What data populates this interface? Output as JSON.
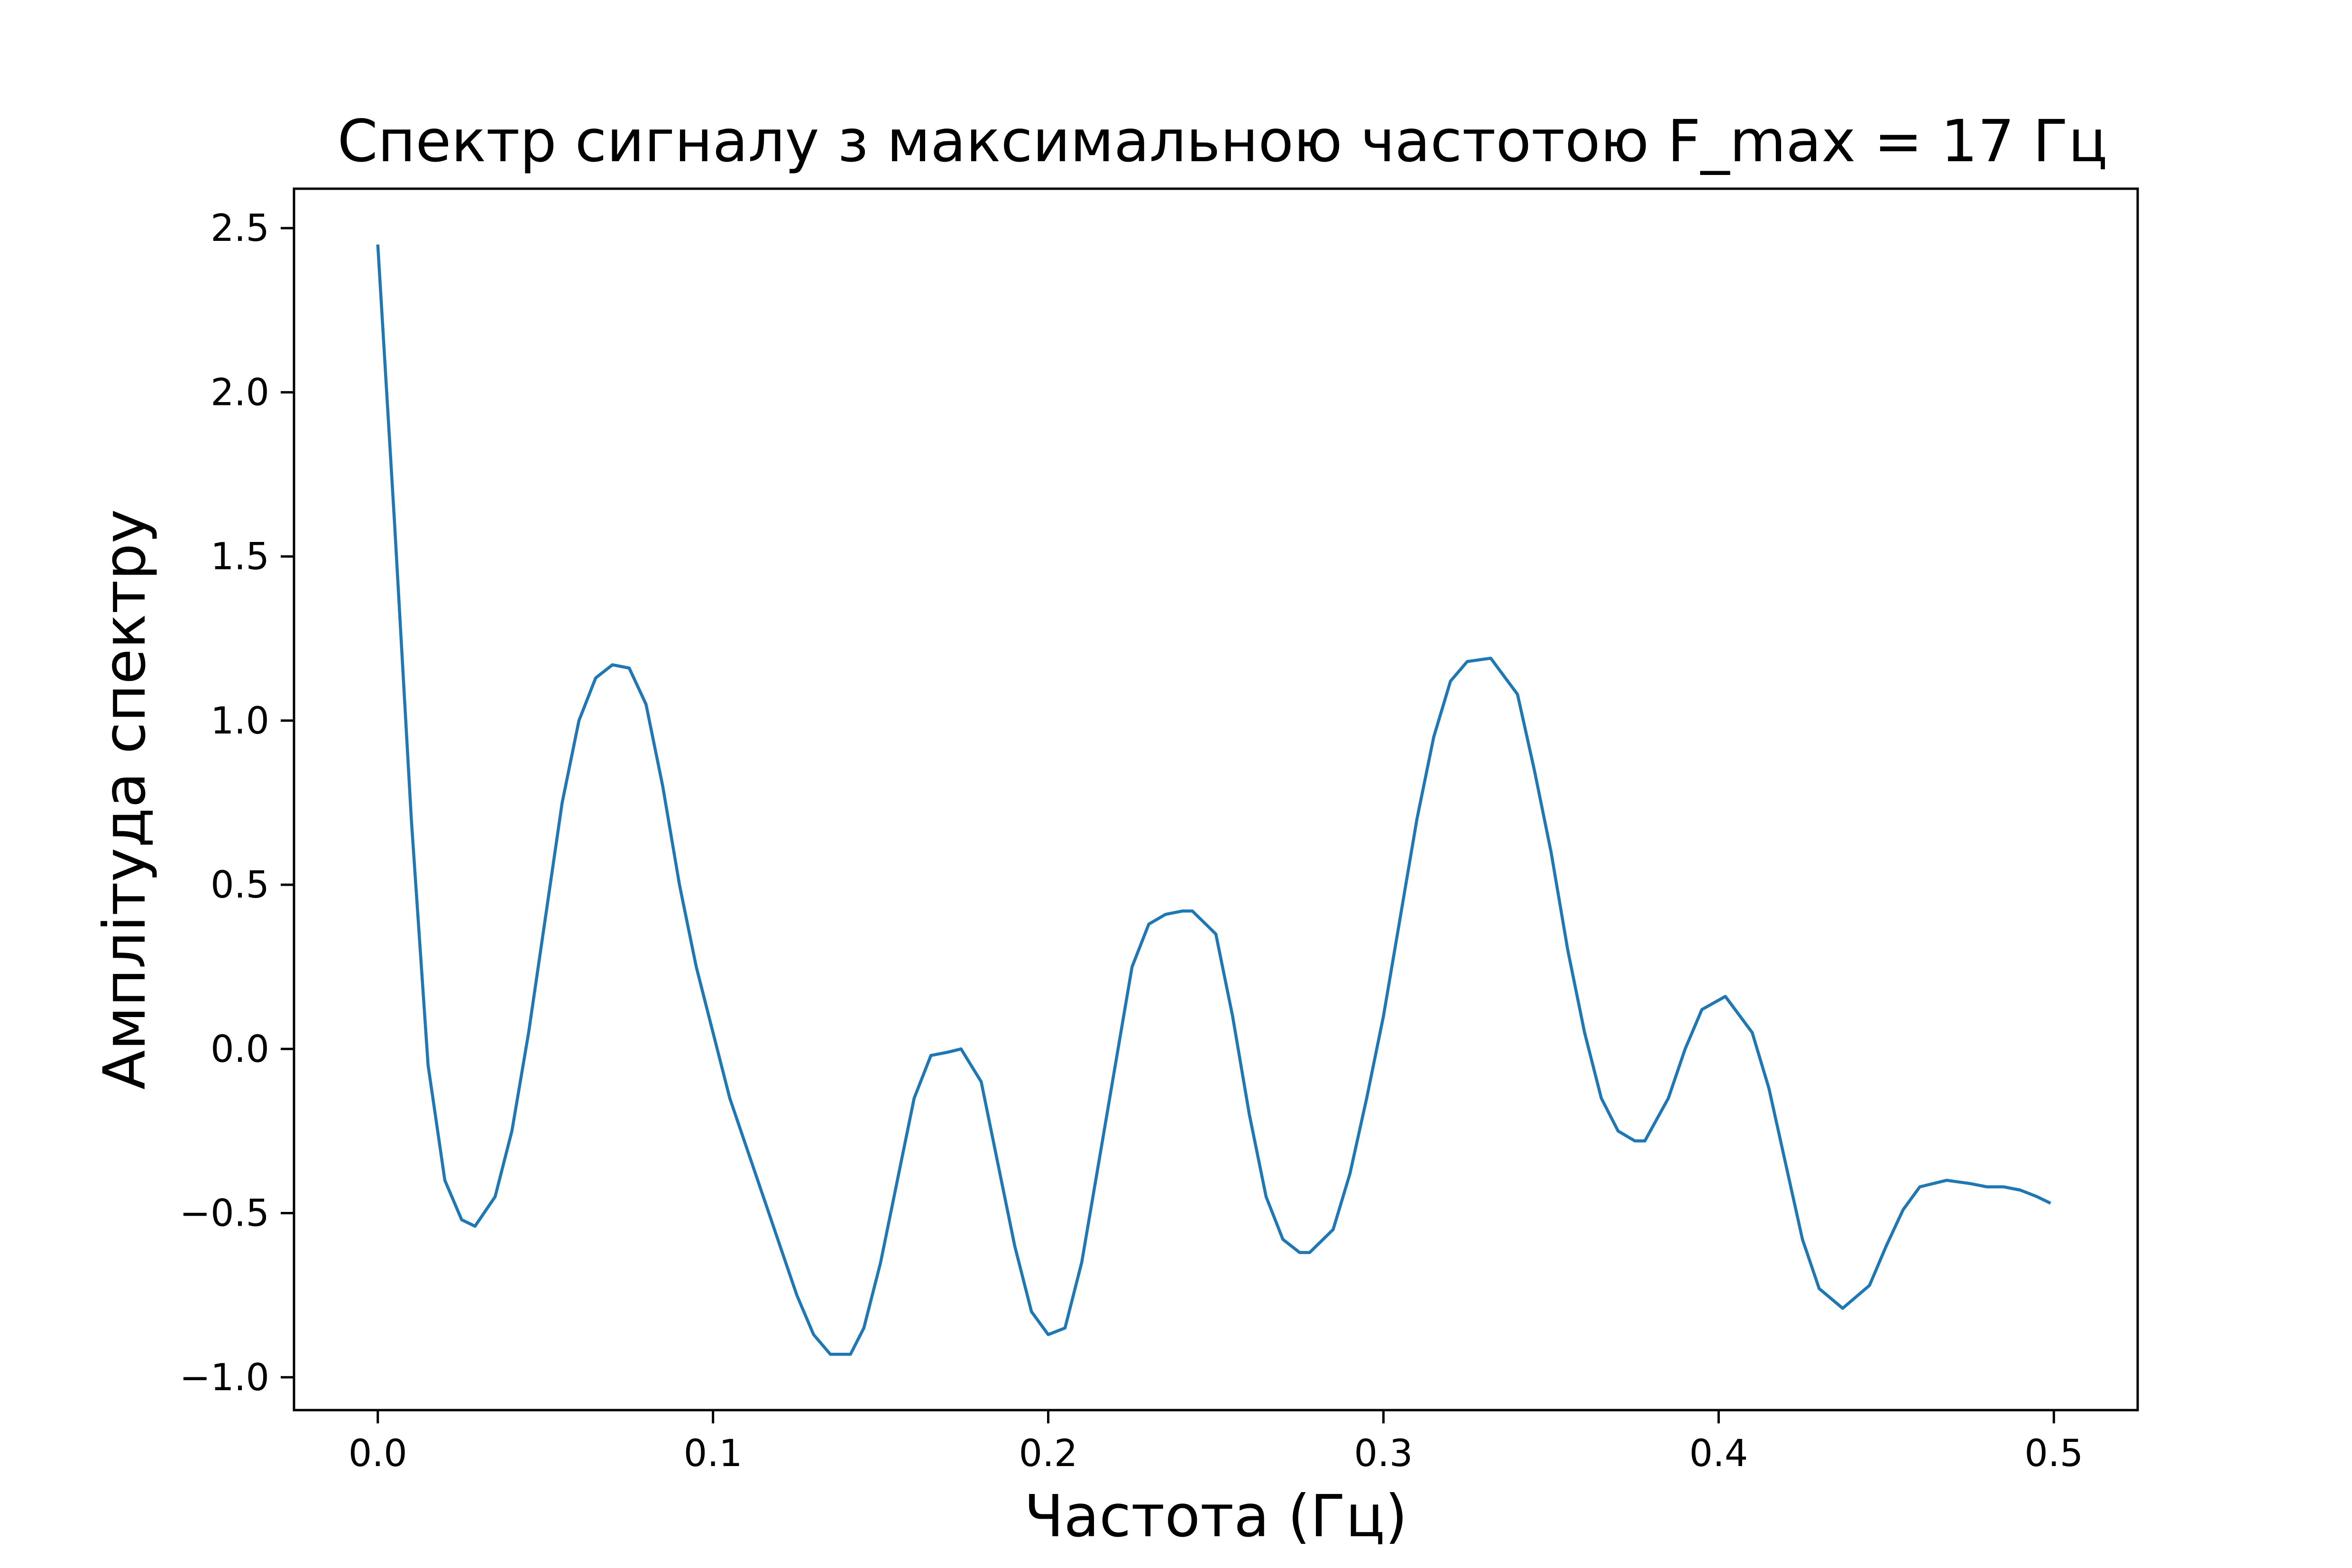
{
  "chart_data": {
    "type": "line",
    "title": "Спектр сигналу з максимальною частотою F_max = 17 Гц",
    "xlabel": "Частота (Гц)",
    "ylabel": "Амплітуда спектру",
    "xlim": [
      -0.025,
      0.525
    ],
    "ylim": [
      -1.1,
      2.62
    ],
    "x_ticks": [
      0.0,
      0.1,
      0.2,
      0.3,
      0.4,
      0.5
    ],
    "x_tick_labels": [
      "0.0",
      "0.1",
      "0.2",
      "0.3",
      "0.4",
      "0.5"
    ],
    "y_ticks": [
      -1.0,
      -0.5,
      0.0,
      0.5,
      1.0,
      1.5,
      2.0,
      2.5
    ],
    "y_tick_labels": [
      "−1.0",
      "−0.5",
      "0.0",
      "0.5",
      "1.0",
      "1.5",
      "2.0",
      "2.5"
    ],
    "grid": false,
    "series": [
      {
        "color": "#1f77b4",
        "x": [
          0.0,
          0.005,
          0.01,
          0.015,
          0.02,
          0.025,
          0.029,
          0.035,
          0.04,
          0.045,
          0.05,
          0.055,
          0.06,
          0.065,
          0.07,
          0.075,
          0.08,
          0.085,
          0.09,
          0.095,
          0.1,
          0.105,
          0.11,
          0.115,
          0.12,
          0.125,
          0.13,
          0.135,
          0.141,
          0.145,
          0.15,
          0.155,
          0.16,
          0.165,
          0.17,
          0.174,
          0.18,
          0.185,
          0.19,
          0.195,
          0.2,
          0.205,
          0.21,
          0.215,
          0.22,
          0.225,
          0.23,
          0.235,
          0.24,
          0.243,
          0.25,
          0.255,
          0.26,
          0.265,
          0.27,
          0.275,
          0.278,
          0.285,
          0.29,
          0.295,
          0.3,
          0.305,
          0.31,
          0.315,
          0.32,
          0.325,
          0.332,
          0.34,
          0.345,
          0.35,
          0.355,
          0.36,
          0.365,
          0.37,
          0.375,
          0.378,
          0.385,
          0.39,
          0.395,
          0.402,
          0.41,
          0.415,
          0.42,
          0.425,
          0.43,
          0.437,
          0.445,
          0.45,
          0.455,
          0.46,
          0.468,
          0.475,
          0.48,
          0.485,
          0.49,
          0.495,
          0.499
        ],
        "y": [
          2.45,
          1.6,
          0.7,
          -0.05,
          -0.4,
          -0.52,
          -0.54,
          -0.45,
          -0.25,
          0.05,
          0.4,
          0.75,
          1.0,
          1.13,
          1.17,
          1.16,
          1.05,
          0.8,
          0.5,
          0.25,
          0.05,
          -0.15,
          -0.3,
          -0.45,
          -0.6,
          -0.75,
          -0.87,
          -0.93,
          -0.93,
          -0.85,
          -0.65,
          -0.4,
          -0.15,
          -0.02,
          -0.01,
          0.0,
          -0.1,
          -0.35,
          -0.6,
          -0.8,
          -0.87,
          -0.85,
          -0.65,
          -0.35,
          -0.05,
          0.25,
          0.38,
          0.41,
          0.42,
          0.42,
          0.35,
          0.1,
          -0.2,
          -0.45,
          -0.58,
          -0.62,
          -0.62,
          -0.55,
          -0.38,
          -0.15,
          0.1,
          0.4,
          0.7,
          0.95,
          1.12,
          1.18,
          1.19,
          1.08,
          0.85,
          0.6,
          0.3,
          0.05,
          -0.15,
          -0.25,
          -0.28,
          -0.28,
          -0.15,
          0.0,
          0.12,
          0.16,
          0.05,
          -0.12,
          -0.35,
          -0.58,
          -0.73,
          -0.79,
          -0.72,
          -0.6,
          -0.49,
          -0.42,
          -0.4,
          -0.41,
          -0.42,
          -0.42,
          -0.43,
          -0.45,
          -0.47
        ]
      }
    ]
  }
}
